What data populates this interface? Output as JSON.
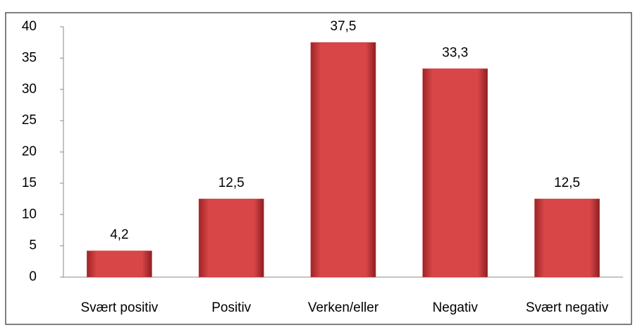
{
  "chart_data": {
    "type": "bar",
    "categories": [
      "Svært positiv",
      "Positiv",
      "Verken/eller",
      "Negativ",
      "Svært negativ"
    ],
    "values": [
      4.2,
      12.5,
      37.5,
      33.3,
      12.5
    ],
    "value_labels": [
      "4,2",
      "12,5",
      "37,5",
      "33,3",
      "12,5"
    ],
    "color": "#c8383a",
    "ylim": [
      0,
      40
    ],
    "yticks": [
      0,
      5,
      10,
      15,
      20,
      25,
      30,
      35,
      40
    ],
    "grid": false
  }
}
